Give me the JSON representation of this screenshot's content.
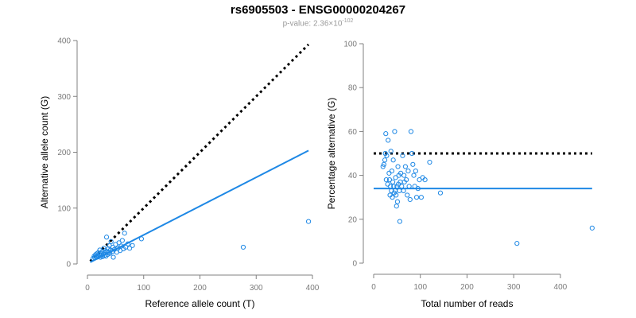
{
  "title": "rs6905503 - ENSG00000204267",
  "subtitle": {
    "prefix": "p-value: 2.36×10",
    "exponent": "-102"
  },
  "colors": {
    "point": "#1e88e5",
    "fit_line": "#1e88e5",
    "reference_line": "#000000",
    "axis": "#808080",
    "tick_label": "#7a7a7a"
  },
  "chart_data": [
    {
      "type": "scatter",
      "xlabel": "Reference allele count (T)",
      "ylabel": "Alternative allele count (G)",
      "xlim": [
        0,
        400
      ],
      "ylim": [
        0,
        400
      ],
      "xticks": [
        0,
        100,
        200,
        300,
        400
      ],
      "yticks": [
        0,
        100,
        200,
        300,
        400
      ],
      "points": [
        [
          10,
          10
        ],
        [
          12,
          14
        ],
        [
          13,
          11
        ],
        [
          14,
          16
        ],
        [
          15,
          13
        ],
        [
          16,
          18
        ],
        [
          17,
          12
        ],
        [
          18,
          15
        ],
        [
          19,
          20
        ],
        [
          20,
          14
        ],
        [
          21,
          17
        ],
        [
          22,
          25
        ],
        [
          23,
          12
        ],
        [
          24,
          19
        ],
        [
          25,
          16
        ],
        [
          26,
          22
        ],
        [
          27,
          13
        ],
        [
          28,
          18
        ],
        [
          29,
          28
        ],
        [
          30,
          15
        ],
        [
          31,
          20
        ],
        [
          32,
          24
        ],
        [
          33,
          14
        ],
        [
          34,
          48
        ],
        [
          35,
          22
        ],
        [
          36,
          17
        ],
        [
          37,
          27
        ],
        [
          38,
          20
        ],
        [
          39,
          33
        ],
        [
          40,
          19
        ],
        [
          41,
          25
        ],
        [
          42,
          40
        ],
        [
          44,
          22
        ],
        [
          45,
          30
        ],
        [
          46,
          12
        ],
        [
          48,
          26
        ],
        [
          50,
          35
        ],
        [
          52,
          21
        ],
        [
          54,
          28
        ],
        [
          56,
          38
        ],
        [
          58,
          24
        ],
        [
          60,
          32
        ],
        [
          62,
          42
        ],
        [
          64,
          27
        ],
        [
          66,
          55
        ],
        [
          68,
          30
        ],
        [
          72,
          36
        ],
        [
          75,
          28
        ],
        [
          80,
          33
        ],
        [
          96,
          45
        ],
        [
          277,
          30
        ],
        [
          393,
          76
        ]
      ],
      "fit_line": [
        [
          5,
          3
        ],
        [
          393,
          203
        ]
      ],
      "reference_line": [
        [
          5,
          5
        ],
        [
          393,
          393
        ]
      ]
    },
    {
      "type": "scatter",
      "xlabel": "Total number of reads",
      "ylabel": "Percentage alternative (G)",
      "xlim": [
        0,
        470
      ],
      "ylim": [
        0,
        100
      ],
      "xticks": [
        0,
        100,
        200,
        300,
        400
      ],
      "yticks": [
        0,
        20,
        40,
        60,
        80,
        100
      ],
      "points": [
        [
          20,
          44
        ],
        [
          22,
          45
        ],
        [
          24,
          47
        ],
        [
          25,
          50
        ],
        [
          26,
          59
        ],
        [
          27,
          38
        ],
        [
          28,
          49
        ],
        [
          30,
          36
        ],
        [
          31,
          56
        ],
        [
          33,
          41
        ],
        [
          34,
          38
        ],
        [
          35,
          31
        ],
        [
          36,
          35
        ],
        [
          37,
          51
        ],
        [
          38,
          33
        ],
        [
          39,
          42
        ],
        [
          40,
          30
        ],
        [
          41,
          37
        ],
        [
          42,
          47
        ],
        [
          43,
          35
        ],
        [
          44,
          32
        ],
        [
          45,
          60
        ],
        [
          46,
          33
        ],
        [
          47,
          39
        ],
        [
          48,
          31
        ],
        [
          49,
          26
        ],
        [
          50,
          35
        ],
        [
          51,
          28
        ],
        [
          52,
          44
        ],
        [
          53,
          36
        ],
        [
          54,
          40
        ],
        [
          55,
          33
        ],
        [
          56,
          19
        ],
        [
          57,
          37
        ],
        [
          58,
          41
        ],
        [
          60,
          35
        ],
        [
          62,
          49
        ],
        [
          64,
          33
        ],
        [
          65,
          40
        ],
        [
          66,
          37
        ],
        [
          68,
          44
        ],
        [
          70,
          38
        ],
        [
          72,
          31
        ],
        [
          74,
          42
        ],
        [
          76,
          35
        ],
        [
          78,
          29
        ],
        [
          80,
          60
        ],
        [
          82,
          50
        ],
        [
          84,
          45
        ],
        [
          86,
          40
        ],
        [
          88,
          35
        ],
        [
          90,
          42
        ],
        [
          92,
          30
        ],
        [
          95,
          34
        ],
        [
          98,
          38
        ],
        [
          102,
          30
        ],
        [
          105,
          39
        ],
        [
          110,
          38
        ],
        [
          120,
          46
        ],
        [
          143,
          32
        ],
        [
          307,
          9
        ],
        [
          468,
          16
        ]
      ],
      "fit_line": [
        [
          0,
          34
        ],
        [
          468,
          34
        ]
      ],
      "reference_line": [
        [
          0,
          50
        ],
        [
          468,
          50
        ]
      ]
    }
  ]
}
